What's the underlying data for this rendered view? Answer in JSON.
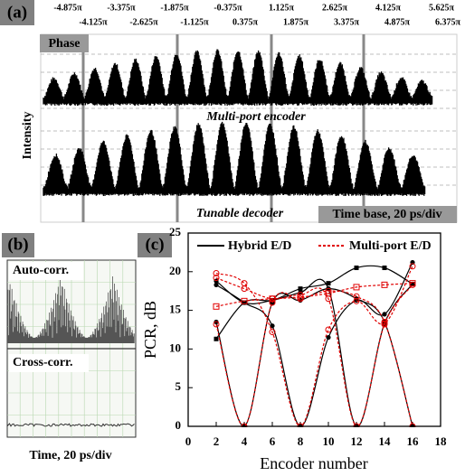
{
  "panel_a": {
    "label": "(a)",
    "phases_top": [
      "-4.875π",
      "-3.375π",
      "-1.875π",
      "-0.375π",
      "1.125π",
      "2.625π",
      "4.125π",
      "5.625π"
    ],
    "phases_bottom": [
      "-4.125π",
      "-2.625π",
      "-1.125π",
      "0.375π",
      "1.875π",
      "3.375π",
      "4.875π",
      "6.375π"
    ],
    "phase_label": "Phase",
    "y_label": "Intensity",
    "trace_top_label": "Multi-port encoder",
    "trace_bottom_label": "Tunable decoder",
    "time_base": "Time base, 20 ps/div"
  },
  "panel_b": {
    "label": "(b)",
    "auto_label": "Auto-corr.",
    "cross_label": "Cross-corr.",
    "x_label": "Time, 20 ps/div"
  },
  "chart_data": {
    "type": "line",
    "panel_label": "(c)",
    "x_label": "Encoder number",
    "y_label": "PCR, dB",
    "x": [
      2,
      4,
      6,
      8,
      10,
      12,
      14,
      16
    ],
    "series": [
      {
        "name": "Hybrid E/D",
        "color": "#000000",
        "dash": "solid",
        "values": [
          [
            11.3,
            16,
            16.3,
            17.8,
            18.5,
            20.5,
            20.5,
            18.4
          ],
          [
            18.3,
            16,
            13,
            0,
            11.5,
            16.3,
            14.5,
            21.2
          ],
          [
            13.5,
            0,
            16,
            16.3,
            17.8,
            16.5,
            13.5,
            0
          ],
          [
            18.8,
            16,
            16.3,
            17.3,
            17.8,
            0,
            13.3,
            18.4
          ]
        ]
      },
      {
        "name": "Multi-port E/D",
        "color": "#e00000",
        "dash": "dotted",
        "values": [
          [
            15.5,
            16.2,
            16.5,
            16.7,
            17.2,
            18,
            18.3,
            18.5
          ],
          [
            19.8,
            18.5,
            12.2,
            0,
            12.5,
            16.2,
            13.3,
            20.7
          ],
          [
            13.2,
            0,
            16,
            16.5,
            17.5,
            16.8,
            13.5,
            0
          ],
          [
            19.2,
            17.8,
            16.5,
            17,
            16.5,
            0,
            13.2,
            18.3
          ]
        ]
      }
    ],
    "xlim": [
      0,
      18
    ],
    "xticks": [
      0,
      2,
      4,
      6,
      8,
      10,
      12,
      14,
      16,
      18
    ],
    "ylim": [
      0,
      25
    ],
    "yticks": [
      0,
      5,
      10,
      15,
      20,
      25
    ],
    "legend": "top"
  }
}
